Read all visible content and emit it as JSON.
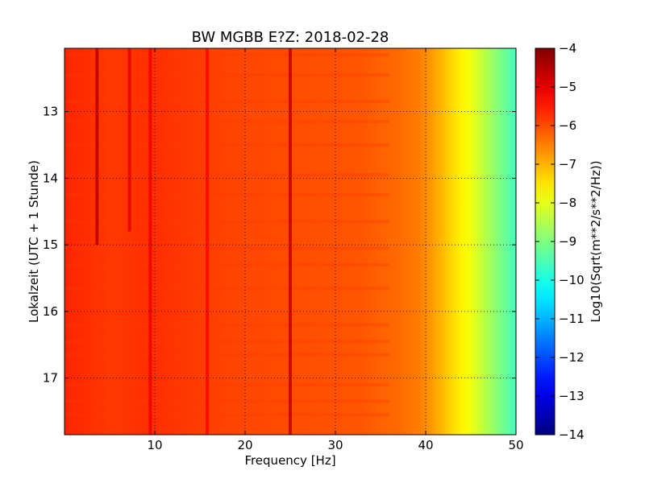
{
  "chart_data": {
    "type": "heatmap",
    "title": "BW MGBB E?Z: 2018-02-28",
    "xlabel": "Frequency [Hz]",
    "ylabel": "Lokalzeit (UTC + 1 Stunde)",
    "xlim": [
      0,
      50
    ],
    "ylim": [
      12.05,
      17.85
    ],
    "y_inverted": true,
    "x_ticks": [
      10,
      20,
      30,
      40,
      50
    ],
    "y_ticks": [
      13,
      14,
      15,
      16,
      17
    ],
    "grid": true,
    "colormap": "jet",
    "colorbar": {
      "label": "Log10(Sqrt(m**2/s**2/Hz))",
      "range": [
        -14,
        -4
      ],
      "ticks": [
        -4,
        -5,
        -6,
        -7,
        -8,
        -9,
        -10,
        -11,
        -12,
        -13,
        -14
      ]
    },
    "spectrum_profile": {
      "frequency_hz": [
        0,
        5,
        10,
        15,
        20,
        25,
        30,
        33,
        35,
        37,
        39,
        40,
        41,
        42,
        43,
        44,
        45,
        46,
        47,
        48,
        49,
        50
      ],
      "level_log10": [
        -5.6,
        -5.8,
        -5.7,
        -5.85,
        -5.95,
        -6.0,
        -6.05,
        -6.1,
        -6.2,
        -6.3,
        -6.45,
        -6.6,
        -6.85,
        -7.1,
        -7.4,
        -7.65,
        -7.9,
        -8.25,
        -8.6,
        -8.95,
        -9.3,
        -9.6
      ]
    },
    "vertical_lines": [
      {
        "frequency_hz": 3.6,
        "level_log10": -4.6,
        "from_hour": 12.05,
        "to_hour": 15.0
      },
      {
        "frequency_hz": 7.2,
        "level_log10": -5.0,
        "from_hour": 12.05,
        "to_hour": 14.8
      },
      {
        "frequency_hz": 9.5,
        "level_log10": -5.1,
        "from_hour": 12.05,
        "to_hour": 17.85
      },
      {
        "frequency_hz": 15.8,
        "level_log10": -5.3,
        "from_hour": 12.05,
        "to_hour": 17.85
      },
      {
        "frequency_hz": 25.0,
        "level_log10": -4.7,
        "from_hour": 12.05,
        "to_hour": 17.85
      }
    ],
    "horizontal_bands_hours": [
      12.15,
      12.45,
      12.85,
      13.15,
      13.5,
      13.95,
      14.25,
      14.65,
      15.05,
      15.3,
      15.65,
      16.2,
      16.45,
      16.65,
      17.1,
      17.35,
      17.55
    ]
  }
}
